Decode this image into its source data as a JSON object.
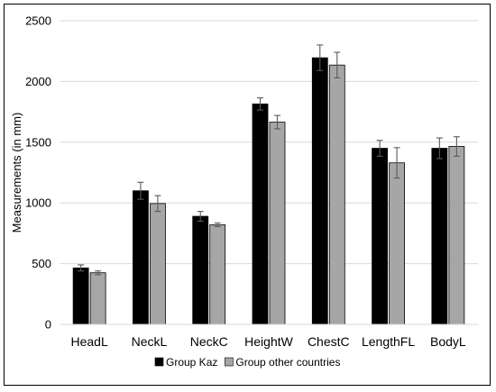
{
  "chart_data": {
    "type": "bar",
    "title": "",
    "xlabel": "",
    "ylabel": "Measurements (in mm)",
    "ylim": [
      0,
      2500
    ],
    "yticks": [
      0,
      500,
      1000,
      1500,
      2000,
      2500
    ],
    "grid": true,
    "legend_position": "bottom",
    "categories": [
      "HeadL",
      "NeckL",
      "NeckC",
      "HeightW",
      "ChestC",
      "LengthFL",
      "BodyL"
    ],
    "series": [
      {
        "name": "Group Kaz",
        "color": "#000000",
        "values": [
          465,
          1100,
          890,
          1815,
          2195,
          1450,
          1450
        ],
        "errors": [
          25,
          70,
          40,
          50,
          105,
          65,
          85
        ]
      },
      {
        "name": "Group other countries",
        "color": "#a6a6a6",
        "values": [
          425,
          995,
          820,
          1665,
          2135,
          1330,
          1465
        ],
        "errors": [
          15,
          65,
          15,
          55,
          105,
          125,
          80
        ]
      }
    ]
  }
}
